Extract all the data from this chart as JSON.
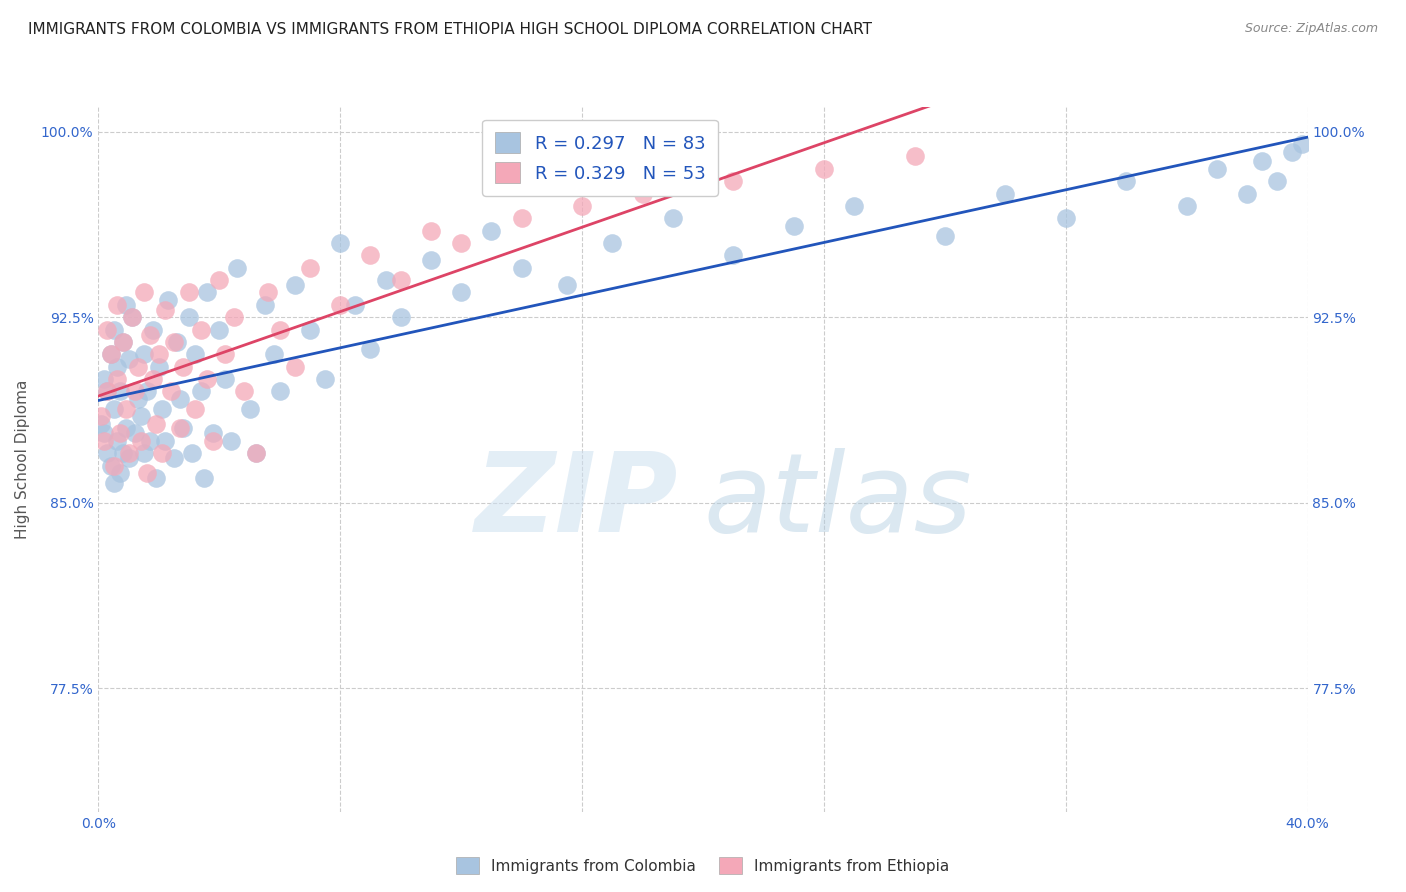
{
  "title": "IMMIGRANTS FROM COLOMBIA VS IMMIGRANTS FROM ETHIOPIA HIGH SCHOOL DIPLOMA CORRELATION CHART",
  "source": "Source: ZipAtlas.com",
  "ylabel": "High School Diploma",
  "xlim": [
    0.0,
    0.4
  ],
  "ylim": [
    0.725,
    1.01
  ],
  "xtick_positions": [
    0.0,
    0.08,
    0.16,
    0.24,
    0.32,
    0.4
  ],
  "xtick_labels": [
    "0.0%",
    "",
    "",
    "",
    "",
    "40.0%"
  ],
  "ytick_positions": [
    0.775,
    0.85,
    0.925,
    1.0
  ],
  "ytick_labels": [
    "77.5%",
    "85.0%",
    "92.5%",
    "100.0%"
  ],
  "legend_blue_label": "Immigrants from Colombia",
  "legend_pink_label": "Immigrants from Ethiopia",
  "r_blue": 0.297,
  "n_blue": 83,
  "r_pink": 0.329,
  "n_pink": 53,
  "blue_color": "#a8c4e0",
  "pink_color": "#f4a8b8",
  "line_blue": "#2255bb",
  "line_pink": "#dd4466",
  "title_fontsize": 11,
  "label_fontsize": 11,
  "tick_fontsize": 10,
  "colombia_x": [
    0.001,
    0.002,
    0.002,
    0.003,
    0.003,
    0.004,
    0.004,
    0.005,
    0.005,
    0.005,
    0.006,
    0.006,
    0.007,
    0.007,
    0.008,
    0.008,
    0.009,
    0.009,
    0.01,
    0.01,
    0.011,
    0.012,
    0.013,
    0.014,
    0.015,
    0.015,
    0.016,
    0.017,
    0.018,
    0.019,
    0.02,
    0.021,
    0.022,
    0.023,
    0.025,
    0.026,
    0.027,
    0.028,
    0.03,
    0.031,
    0.032,
    0.034,
    0.035,
    0.036,
    0.038,
    0.04,
    0.042,
    0.044,
    0.046,
    0.05,
    0.052,
    0.055,
    0.058,
    0.06,
    0.065,
    0.07,
    0.075,
    0.08,
    0.085,
    0.09,
    0.095,
    0.1,
    0.11,
    0.12,
    0.13,
    0.14,
    0.155,
    0.17,
    0.19,
    0.21,
    0.23,
    0.25,
    0.28,
    0.3,
    0.32,
    0.34,
    0.36,
    0.37,
    0.38,
    0.385,
    0.39,
    0.395,
    0.398
  ],
  "colombia_y": [
    0.882,
    0.878,
    0.9,
    0.87,
    0.895,
    0.865,
    0.91,
    0.858,
    0.888,
    0.92,
    0.875,
    0.905,
    0.862,
    0.895,
    0.87,
    0.915,
    0.88,
    0.93,
    0.868,
    0.908,
    0.925,
    0.878,
    0.892,
    0.885,
    0.87,
    0.91,
    0.895,
    0.875,
    0.92,
    0.86,
    0.905,
    0.888,
    0.875,
    0.932,
    0.868,
    0.915,
    0.892,
    0.88,
    0.925,
    0.87,
    0.91,
    0.895,
    0.86,
    0.935,
    0.878,
    0.92,
    0.9,
    0.875,
    0.945,
    0.888,
    0.87,
    0.93,
    0.91,
    0.895,
    0.938,
    0.92,
    0.9,
    0.955,
    0.93,
    0.912,
    0.94,
    0.925,
    0.948,
    0.935,
    0.96,
    0.945,
    0.938,
    0.955,
    0.965,
    0.95,
    0.962,
    0.97,
    0.958,
    0.975,
    0.965,
    0.98,
    0.97,
    0.985,
    0.975,
    0.988,
    0.98,
    0.992,
    0.995
  ],
  "ethiopia_x": [
    0.001,
    0.002,
    0.003,
    0.003,
    0.004,
    0.005,
    0.006,
    0.006,
    0.007,
    0.008,
    0.009,
    0.01,
    0.011,
    0.012,
    0.013,
    0.014,
    0.015,
    0.016,
    0.017,
    0.018,
    0.019,
    0.02,
    0.021,
    0.022,
    0.024,
    0.025,
    0.027,
    0.028,
    0.03,
    0.032,
    0.034,
    0.036,
    0.038,
    0.04,
    0.042,
    0.045,
    0.048,
    0.052,
    0.056,
    0.06,
    0.065,
    0.07,
    0.08,
    0.09,
    0.1,
    0.11,
    0.12,
    0.14,
    0.16,
    0.18,
    0.21,
    0.24,
    0.27
  ],
  "ethiopia_y": [
    0.885,
    0.875,
    0.92,
    0.895,
    0.91,
    0.865,
    0.9,
    0.93,
    0.878,
    0.915,
    0.888,
    0.87,
    0.925,
    0.895,
    0.905,
    0.875,
    0.935,
    0.862,
    0.918,
    0.9,
    0.882,
    0.91,
    0.87,
    0.928,
    0.895,
    0.915,
    0.88,
    0.905,
    0.935,
    0.888,
    0.92,
    0.9,
    0.875,
    0.94,
    0.91,
    0.925,
    0.895,
    0.87,
    0.935,
    0.92,
    0.905,
    0.945,
    0.93,
    0.95,
    0.94,
    0.96,
    0.955,
    0.965,
    0.97,
    0.975,
    0.98,
    0.985,
    0.99
  ]
}
